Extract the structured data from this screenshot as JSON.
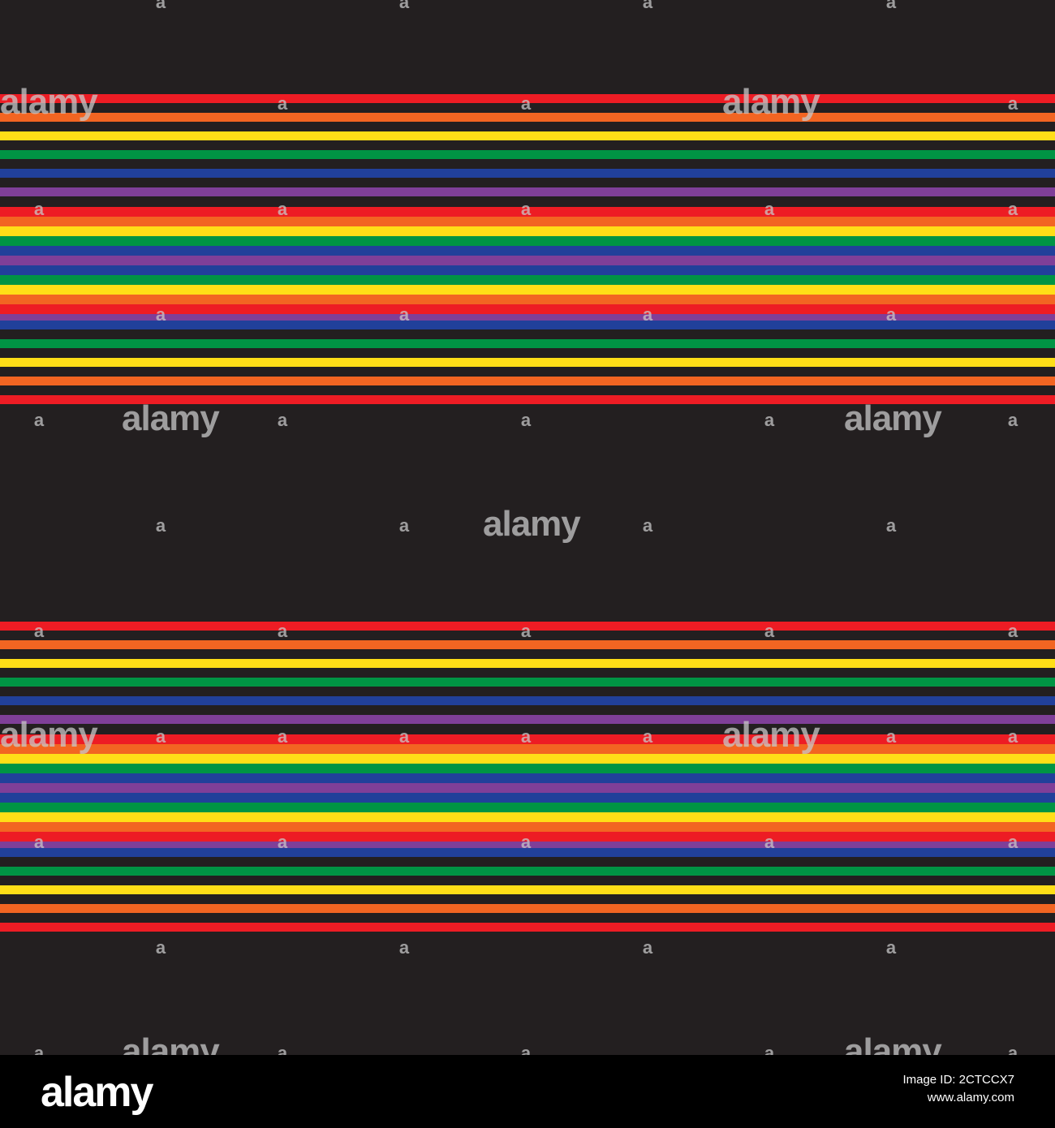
{
  "palette": {
    "background": "#231f20",
    "red": "#ed1c24",
    "orange": "#f26522",
    "yellow": "#ffde17",
    "green": "#009444",
    "blue": "#21409a",
    "purple": "#7f3f98"
  },
  "watermark": {
    "logo_text": "alamy",
    "short_text": "a"
  },
  "footer": {
    "logo_text": "alamy",
    "image_id": "Image ID: 2CTCCX7",
    "url": "www.alamy.com"
  }
}
